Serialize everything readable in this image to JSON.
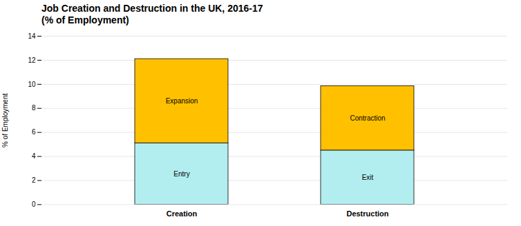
{
  "chart_data": {
    "type": "bar",
    "stacked": true,
    "title": "Job Creation and Destruction in the UK, 2016-17\n(% of Employment)",
    "categories": [
      "Creation",
      "Destruction"
    ],
    "series": [
      {
        "color": "#b2eef0",
        "values": [
          5.1,
          4.5
        ],
        "labels": [
          "Entry",
          "Exit"
        ]
      },
      {
        "color": "#ffc000",
        "values": [
          7.0,
          5.35
        ],
        "labels": [
          "Expansion",
          "Contraction"
        ]
      }
    ],
    "edge_color": "#000000",
    "ylabel": "% of Employment",
    "ylim": [
      0,
      14
    ],
    "yticks": [
      0,
      2,
      4,
      6,
      8,
      10,
      12,
      14
    ],
    "grid": true
  }
}
